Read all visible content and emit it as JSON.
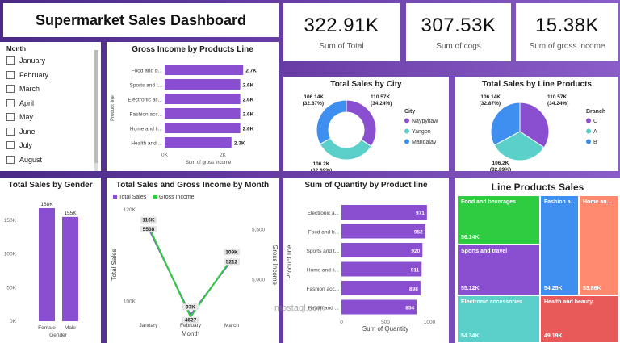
{
  "title": "Supermarket Sales Dashboard",
  "kpis": [
    {
      "value": "322.91K",
      "label": "Sum of Total"
    },
    {
      "value": "307.53K",
      "label": "Sum of cogs"
    },
    {
      "value": "15.38K",
      "label": "Sum of gross income"
    }
  ],
  "month_slicer": {
    "header": "Month",
    "items": [
      "January",
      "February",
      "March",
      "April",
      "May",
      "June",
      "July",
      "August"
    ]
  },
  "watermark": "mostaql.com",
  "colors": {
    "purple": "#8a4fd0",
    "teal": "#5bcfc9",
    "blue": "#3f8ff0",
    "green": "#2ecc40"
  },
  "chart_data": [
    {
      "id": "gross_by_line",
      "type": "bar",
      "orientation": "horizontal",
      "title": "Gross Income by Products Line",
      "xlabel": "Sum of gross income",
      "ylabel": "Product line",
      "categories": [
        "Food and b...",
        "Sports and t...",
        "Electronic ac...",
        "Fashion acc...",
        "Home and li...",
        "Health and ..."
      ],
      "values": [
        2.7,
        2.6,
        2.6,
        2.6,
        2.6,
        2.3
      ],
      "data_labels": [
        "2.7K",
        "2.6K",
        "2.6K",
        "2.6K",
        "2.6K",
        "2.3K"
      ],
      "xticks": [
        "0K",
        "2K"
      ],
      "xlim": [
        0,
        3.0
      ]
    },
    {
      "id": "sales_by_city",
      "type": "pie",
      "donut": true,
      "title": "Total Sales by City",
      "legend_title": "City",
      "labels": [
        "Naypyitaw",
        "Yangon",
        "Mandalay"
      ],
      "values": [
        110.57,
        106.2,
        106.14
      ],
      "data_labels": [
        "110.57K (34.24%)",
        "106.2K (32.89%)",
        "106.14K (32.87%)"
      ],
      "legend": "right"
    },
    {
      "id": "sales_by_branch",
      "type": "pie",
      "donut": false,
      "title": "Total Sales by Line Products",
      "legend_title": "Branch",
      "labels": [
        "C",
        "A",
        "B"
      ],
      "values": [
        110.57,
        106.2,
        106.14
      ],
      "data_labels": [
        "110.57K (34.24%)",
        "106.2K (32.89%)",
        "106.14K (32.87%)"
      ],
      "legend": "right"
    },
    {
      "id": "sales_by_gender",
      "type": "bar",
      "title": "Total Sales by Gender",
      "xlabel": "Gender",
      "categories": [
        "Female",
        "Male"
      ],
      "values": [
        168,
        155
      ],
      "data_labels": [
        "168K",
        "155K"
      ],
      "yticks": [
        "0K",
        "50K",
        "100K",
        "150K"
      ],
      "ylim": [
        0,
        180
      ]
    },
    {
      "id": "sales_gross_by_month",
      "type": "line",
      "title": "Total Sales and Gross Income by Month",
      "xlabel": "Month",
      "ylabel": "Total Sales",
      "y2label": "Gross Income",
      "categories": [
        "January",
        "February",
        "March"
      ],
      "series": [
        {
          "name": "Total Sales",
          "values": [
            116,
            97,
            109
          ],
          "labels": [
            "116K",
            "97K",
            "109K"
          ],
          "axis": "left"
        },
        {
          "name": "Gross Income",
          "values": [
            5538,
            4627,
            5212
          ],
          "labels": [
            "5538",
            "4627",
            "5212"
          ],
          "axis": "right"
        }
      ],
      "yticks": [
        "100K",
        "120K"
      ],
      "ylim": [
        96,
        120
      ],
      "y2ticks": [
        "5,000",
        "5,500"
      ],
      "y2lim": [
        4600,
        5700
      ]
    },
    {
      "id": "quantity_by_line",
      "type": "bar",
      "orientation": "horizontal",
      "title": "Sum of Quantity by Product line",
      "xlabel": "Sum of Quantity",
      "ylabel": "Product line",
      "categories": [
        "Electronic a...",
        "Food and b...",
        "Sports and t...",
        "Home and li...",
        "Fashion acc...",
        "Health and ..."
      ],
      "values": [
        971,
        952,
        920,
        911,
        898,
        854
      ],
      "xticks": [
        "0",
        "500",
        "1000"
      ],
      "xlim": [
        0,
        1000
      ]
    },
    {
      "id": "line_products_sales",
      "type": "treemap",
      "title": "Line Products Sales",
      "items": [
        {
          "label": "Food and beverages",
          "value_label": "56.14K",
          "value": 56.14,
          "color": "#2ecc40"
        },
        {
          "label": "Sports and travel",
          "value_label": "55.12K",
          "value": 55.12,
          "color": "#8a4fd0"
        },
        {
          "label": "Electronic accessories",
          "value_label": "54.34K",
          "value": 54.34,
          "color": "#5bcfc9"
        },
        {
          "label": "Fashion a...",
          "value_label": "54.25K",
          "value": 54.25,
          "color": "#3f8ff0"
        },
        {
          "label": "Home an...",
          "value_label": "53.86K",
          "value": 53.86,
          "color": "#ff8a70"
        },
        {
          "label": "Health and beauty",
          "value_label": "49.19K",
          "value": 49.19,
          "color": "#e85a5a"
        }
      ]
    }
  ]
}
